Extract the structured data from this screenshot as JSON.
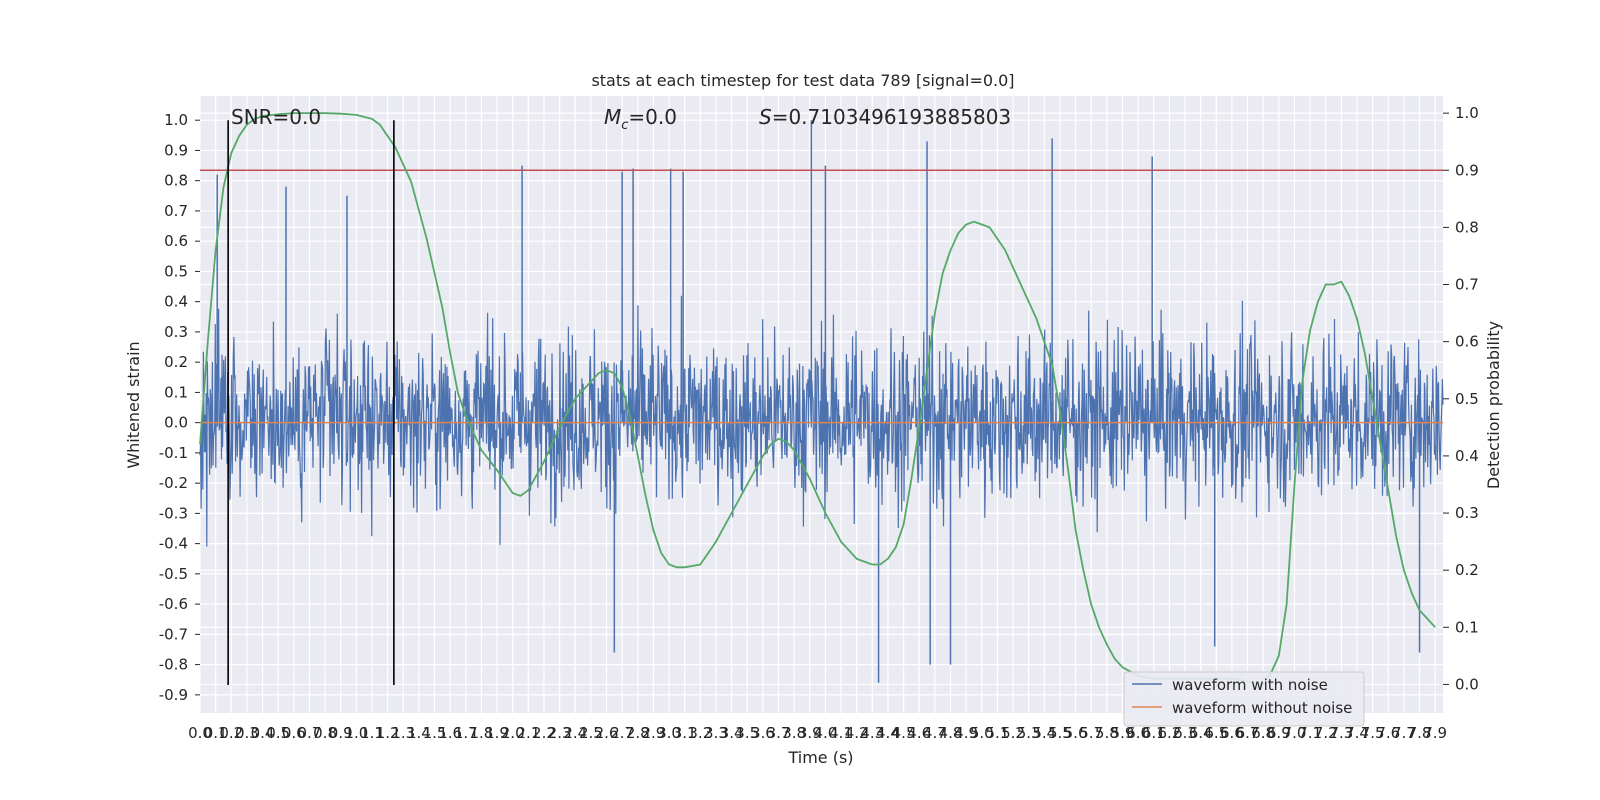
{
  "chart_data": {
    "type": "line",
    "title": "stats at each timestep for test data 789 [signal=0.0]",
    "xlabel": "Time (s)",
    "ylabel": "Whitened strain",
    "y2label": "Detection probability",
    "xlim": [
      0.0,
      7.95
    ],
    "ylim": [
      -0.96,
      1.08
    ],
    "y2lim": [
      -0.05,
      1.03
    ],
    "grid": true,
    "legend_position": "lower-right",
    "x_ticks": [
      "0.0",
      "0.1",
      "0.2",
      "0.3",
      "0.4",
      "0.5",
      "0.6",
      "0.7",
      "0.8",
      "0.9",
      "1.0",
      "1.1",
      "1.2",
      "1.3",
      "1.4",
      "1.5",
      "1.6",
      "1.7",
      "1.8",
      "1.9",
      "2.0",
      "2.1",
      "2.2",
      "2.3",
      "2.4",
      "2.5",
      "2.6",
      "2.7",
      "2.8",
      "2.9",
      "3.0",
      "3.1",
      "3.2",
      "3.3",
      "3.4",
      "3.5",
      "3.6",
      "3.7",
      "3.8",
      "3.9",
      "4.0",
      "4.1",
      "4.2",
      "4.3",
      "4.4",
      "4.5",
      "4.6",
      "4.7",
      "4.8",
      "4.9",
      "5.0",
      "5.1",
      "5.2",
      "5.3",
      "5.4",
      "5.5",
      "5.6",
      "5.7",
      "5.8",
      "5.9",
      "6.0",
      "6.1",
      "6.2",
      "6.3",
      "6.4",
      "6.5",
      "6.6",
      "6.7",
      "6.8",
      "6.9",
      "7.0",
      "7.1",
      "7.2",
      "7.3",
      "7.4",
      "7.5",
      "7.6",
      "7.7",
      "7.8",
      "7.9"
    ],
    "y_ticks": [
      "-0.9",
      "-0.8",
      "-0.7",
      "-0.6",
      "-0.5",
      "-0.4",
      "-0.3",
      "-0.2",
      "-0.1",
      "0.0",
      "0.1",
      "0.2",
      "0.3",
      "0.4",
      "0.5",
      "0.6",
      "0.7",
      "0.8",
      "0.9",
      "1.0"
    ],
    "y2_ticks": [
      "0.0",
      "0.1",
      "0.2",
      "0.3",
      "0.4",
      "0.5",
      "0.6",
      "0.7",
      "0.8",
      "0.9",
      "1.0"
    ],
    "annotations": {
      "snr": "SNR=0.0",
      "mc_symbol": "M",
      "mc_sub": "c",
      "mc_value": "=0.0",
      "s_symbol": "S",
      "s_value": "=0.7103496193885803"
    },
    "series": [
      {
        "name": "waveform with noise",
        "color": "#4c72b0",
        "axis": "left",
        "kind": "noise",
        "amplitude_envelope": [
          -0.87,
          1.0
        ],
        "spikes": [
          {
            "x": 0.11,
            "y": 0.82
          },
          {
            "x": 0.55,
            "y": 0.78
          },
          {
            "x": 0.94,
            "y": 0.75
          },
          {
            "x": 2.06,
            "y": 0.85
          },
          {
            "x": 2.7,
            "y": 0.83
          },
          {
            "x": 2.77,
            "y": 0.84
          },
          {
            "x": 3.01,
            "y": 0.84
          },
          {
            "x": 3.09,
            "y": 0.83
          },
          {
            "x": 3.91,
            "y": 1.0
          },
          {
            "x": 4.0,
            "y": 0.85
          },
          {
            "x": 4.65,
            "y": 0.93
          },
          {
            "x": 5.45,
            "y": 0.94
          },
          {
            "x": 6.09,
            "y": 0.88
          },
          {
            "x": 4.34,
            "y": -0.86
          },
          {
            "x": 4.67,
            "y": -0.8
          },
          {
            "x": 4.8,
            "y": -0.8
          },
          {
            "x": 2.65,
            "y": -0.76
          },
          {
            "x": 6.49,
            "y": -0.74
          },
          {
            "x": 7.8,
            "y": -0.76
          }
        ]
      },
      {
        "name": "waveform without noise",
        "color": "#dd8452",
        "axis": "left",
        "x": [
          0.0,
          7.95
        ],
        "y": [
          0.0,
          0.0
        ]
      },
      {
        "name": "",
        "color": "#55a868",
        "axis": "right",
        "x": [
          0.0,
          0.05,
          0.1,
          0.15,
          0.2,
          0.25,
          0.3,
          0.35,
          0.4,
          0.5,
          0.6,
          0.7,
          0.8,
          0.9,
          1.0,
          1.1,
          1.15,
          1.2,
          1.25,
          1.3,
          1.35,
          1.4,
          1.45,
          1.5,
          1.55,
          1.6,
          1.65,
          1.7,
          1.8,
          1.9,
          2.0,
          2.05,
          2.1,
          2.2,
          2.3,
          2.4,
          2.5,
          2.55,
          2.6,
          2.65,
          2.7,
          2.75,
          2.8,
          2.85,
          2.9,
          2.95,
          3.0,
          3.05,
          3.1,
          3.2,
          3.3,
          3.4,
          3.5,
          3.6,
          3.65,
          3.7,
          3.75,
          3.8,
          3.9,
          4.0,
          4.1,
          4.2,
          4.3,
          4.35,
          4.4,
          4.45,
          4.5,
          4.55,
          4.6,
          4.65,
          4.7,
          4.75,
          4.8,
          4.85,
          4.9,
          4.95,
          5.0,
          5.05,
          5.1,
          5.15,
          5.2,
          5.25,
          5.3,
          5.35,
          5.4,
          5.45,
          5.5,
          5.55,
          5.6,
          5.65,
          5.7,
          5.75,
          5.8,
          5.85,
          5.9,
          6.0,
          6.1,
          6.2,
          6.3,
          6.4,
          6.5,
          6.6,
          6.7,
          6.8,
          6.85,
          6.9,
          6.95,
          7.0,
          7.05,
          7.1,
          7.15,
          7.2,
          7.25,
          7.3,
          7.35,
          7.4,
          7.45,
          7.5,
          7.55,
          7.6,
          7.65,
          7.7,
          7.75,
          7.8,
          7.85,
          7.9
        ],
        "y": [
          0.42,
          0.6,
          0.76,
          0.87,
          0.93,
          0.96,
          0.98,
          0.99,
          0.995,
          0.998,
          1.0,
          1.0,
          1.0,
          0.999,
          0.997,
          0.99,
          0.98,
          0.96,
          0.94,
          0.91,
          0.88,
          0.83,
          0.78,
          0.72,
          0.66,
          0.58,
          0.51,
          0.47,
          0.41,
          0.375,
          0.335,
          0.33,
          0.34,
          0.39,
          0.45,
          0.5,
          0.53,
          0.545,
          0.55,
          0.545,
          0.52,
          0.47,
          0.4,
          0.33,
          0.27,
          0.23,
          0.21,
          0.205,
          0.205,
          0.21,
          0.25,
          0.3,
          0.35,
          0.4,
          0.42,
          0.43,
          0.425,
          0.41,
          0.36,
          0.3,
          0.25,
          0.22,
          0.21,
          0.21,
          0.22,
          0.24,
          0.28,
          0.36,
          0.45,
          0.55,
          0.65,
          0.72,
          0.76,
          0.79,
          0.805,
          0.81,
          0.805,
          0.8,
          0.78,
          0.76,
          0.73,
          0.7,
          0.67,
          0.64,
          0.6,
          0.56,
          0.48,
          0.38,
          0.27,
          0.2,
          0.14,
          0.1,
          0.07,
          0.045,
          0.03,
          0.015,
          0.01,
          0.01,
          0.01,
          0.01,
          0.01,
          0.01,
          0.005,
          0.0,
          0.02,
          0.05,
          0.14,
          0.35,
          0.53,
          0.62,
          0.67,
          0.7,
          0.7,
          0.705,
          0.68,
          0.64,
          0.58,
          0.5,
          0.42,
          0.34,
          0.26,
          0.2,
          0.16,
          0.13,
          0.115,
          0.1
        ]
      }
    ],
    "vlines": [
      0.18,
      1.24
    ],
    "hline_red_y2": 0.9,
    "hline_red_color": "#c44e52"
  }
}
